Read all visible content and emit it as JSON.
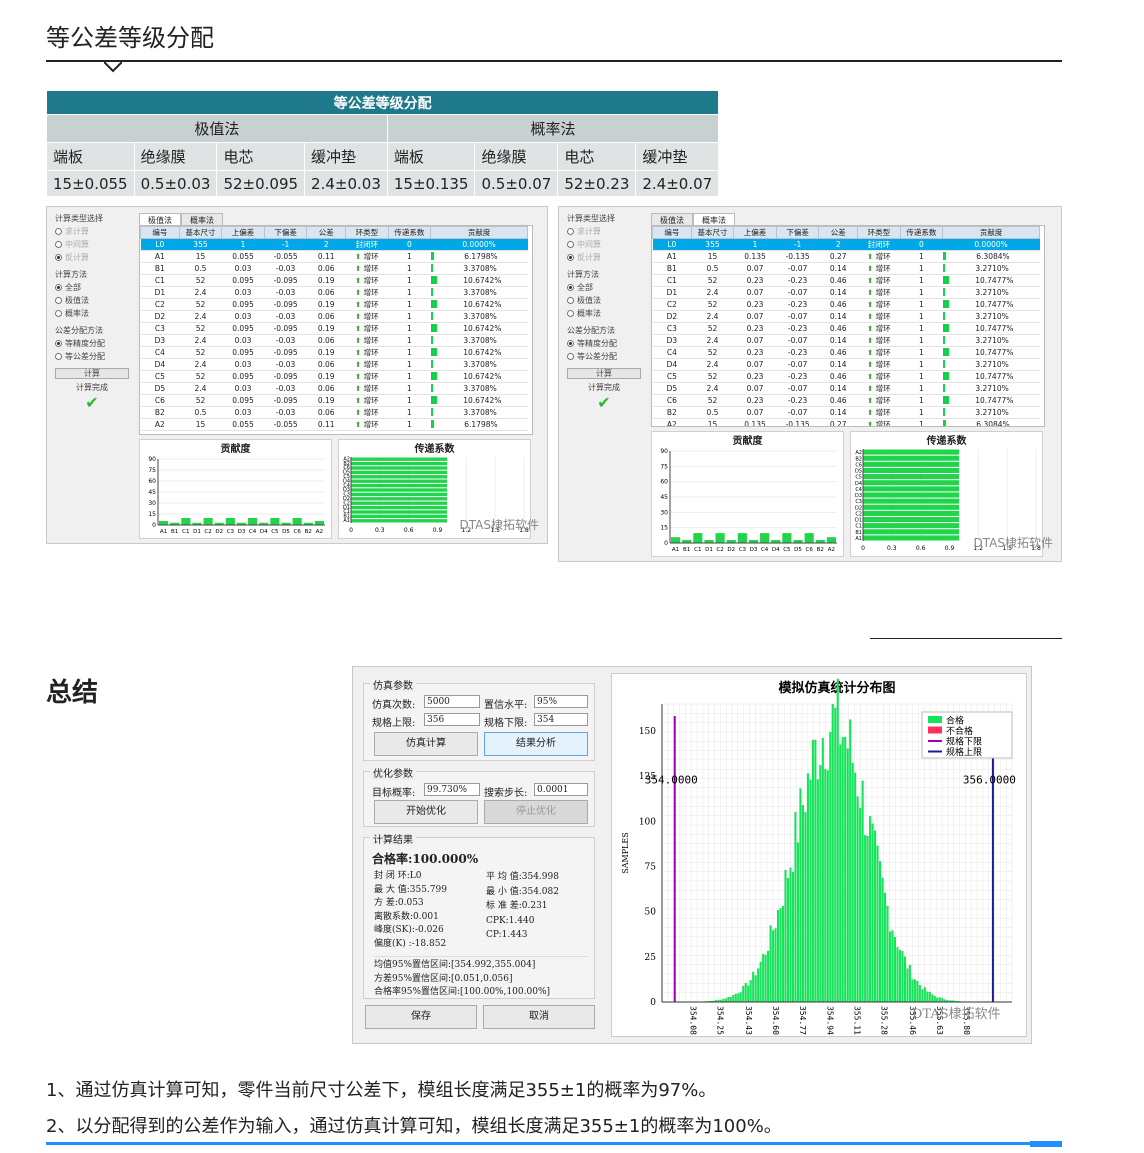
{
  "section1_title": "等公差等级分配",
  "table": {
    "title": "等公差等级分配",
    "group1": "极值法",
    "group2": "概率法",
    "headers1": [
      "端板",
      "绝缘膜",
      "电芯",
      "缓冲垫"
    ],
    "values1": [
      "15±0.055",
      "0.5±0.03",
      "52±0.095",
      "2.4±0.03"
    ],
    "headers2": [
      "端板",
      "绝缘膜",
      "电芯",
      "缓冲垫"
    ],
    "values2": [
      "15±0.135",
      "0.5±0.07",
      "52±0.23",
      "2.4±0.07"
    ]
  },
  "sw1": {
    "side": {
      "calc_type_label": "计算类型选择",
      "calc_types": [
        "求计算",
        "中间算",
        "反计算"
      ],
      "method_label": "计算方法",
      "methods": [
        "全部",
        "极值法",
        "概率法"
      ],
      "alloc_label": "公差分配方法",
      "allocs": [
        "等精度分配",
        "等公差分配"
      ],
      "calc_btn": "计算",
      "status": "计算完成"
    },
    "tabs": [
      "极值法",
      "概率法"
    ],
    "columns": [
      "编号",
      "基本尺寸",
      "上偏差",
      "下偏差",
      "公差",
      "环类型",
      "传递系数",
      "贡献度"
    ],
    "rows": [
      [
        "L0",
        "355",
        "1",
        "-1",
        "2",
        "封闭环",
        "0",
        "0.0000%"
      ],
      [
        "A1",
        "15",
        "0.055",
        "-0.055",
        "0.11",
        "增环",
        "1",
        "6.1798%"
      ],
      [
        "B1",
        "0.5",
        "0.03",
        "-0.03",
        "0.06",
        "增环",
        "1",
        "3.3708%"
      ],
      [
        "C1",
        "52",
        "0.095",
        "-0.095",
        "0.19",
        "增环",
        "1",
        "10.6742%"
      ],
      [
        "D1",
        "2.4",
        "0.03",
        "-0.03",
        "0.06",
        "增环",
        "1",
        "3.3708%"
      ],
      [
        "C2",
        "52",
        "0.095",
        "-0.095",
        "0.19",
        "增环",
        "1",
        "10.6742%"
      ],
      [
        "D2",
        "2.4",
        "0.03",
        "-0.03",
        "0.06",
        "增环",
        "1",
        "3.3708%"
      ],
      [
        "C3",
        "52",
        "0.095",
        "-0.095",
        "0.19",
        "增环",
        "1",
        "10.6742%"
      ],
      [
        "D3",
        "2.4",
        "0.03",
        "-0.03",
        "0.06",
        "增环",
        "1",
        "3.3708%"
      ],
      [
        "C4",
        "52",
        "0.095",
        "-0.095",
        "0.19",
        "增环",
        "1",
        "10.6742%"
      ],
      [
        "D4",
        "2.4",
        "0.03",
        "-0.03",
        "0.06",
        "增环",
        "1",
        "3.3708%"
      ],
      [
        "C5",
        "52",
        "0.095",
        "-0.095",
        "0.19",
        "增环",
        "1",
        "10.6742%"
      ],
      [
        "D5",
        "2.4",
        "0.03",
        "-0.03",
        "0.06",
        "增环",
        "1",
        "3.3708%"
      ],
      [
        "C6",
        "52",
        "0.095",
        "-0.095",
        "0.19",
        "增环",
        "1",
        "10.6742%"
      ],
      [
        "B2",
        "0.5",
        "0.03",
        "-0.03",
        "0.06",
        "增环",
        "1",
        "3.3708%"
      ],
      [
        "A2",
        "15",
        "0.055",
        "-0.055",
        "0.11",
        "增环",
        "1",
        "6.1798%"
      ]
    ],
    "chart1_title": "贡献度",
    "chart2_title": "传递系数",
    "watermark": "DTAS棣拓软件"
  },
  "sw2": {
    "side": {
      "calc_type_label": "计算类型选择",
      "calc_types": [
        "求计算",
        "中间算",
        "反计算"
      ],
      "method_label": "计算方法",
      "methods": [
        "全部",
        "极值法",
        "概率法"
      ],
      "alloc_label": "公差分配方法",
      "allocs": [
        "等精度分配",
        "等公差分配"
      ],
      "calc_btn": "计算",
      "status": "计算完成"
    },
    "tabs": [
      "极值法",
      "概率法"
    ],
    "columns": [
      "编号",
      "基本尺寸",
      "上偏差",
      "下偏差",
      "公差",
      "环类型",
      "传递系数",
      "贡献度"
    ],
    "rows": [
      [
        "L0",
        "355",
        "1",
        "-1",
        "2",
        "封闭环",
        "0",
        "0.0000%"
      ],
      [
        "A1",
        "15",
        "0.135",
        "-0.135",
        "0.27",
        "增环",
        "1",
        "6.3084%"
      ],
      [
        "B1",
        "0.5",
        "0.07",
        "-0.07",
        "0.14",
        "增环",
        "1",
        "3.2710%"
      ],
      [
        "C1",
        "52",
        "0.23",
        "-0.23",
        "0.46",
        "增环",
        "1",
        "10.7477%"
      ],
      [
        "D1",
        "2.4",
        "0.07",
        "-0.07",
        "0.14",
        "增环",
        "1",
        "3.2710%"
      ],
      [
        "C2",
        "52",
        "0.23",
        "-0.23",
        "0.46",
        "增环",
        "1",
        "10.7477%"
      ],
      [
        "D2",
        "2.4",
        "0.07",
        "-0.07",
        "0.14",
        "增环",
        "1",
        "3.2710%"
      ],
      [
        "C3",
        "52",
        "0.23",
        "-0.23",
        "0.46",
        "增环",
        "1",
        "10.7477%"
      ],
      [
        "D3",
        "2.4",
        "0.07",
        "-0.07",
        "0.14",
        "增环",
        "1",
        "3.2710%"
      ],
      [
        "C4",
        "52",
        "0.23",
        "-0.23",
        "0.46",
        "增环",
        "1",
        "10.7477%"
      ],
      [
        "D4",
        "2.4",
        "0.07",
        "-0.07",
        "0.14",
        "增环",
        "1",
        "3.2710%"
      ],
      [
        "C5",
        "52",
        "0.23",
        "-0.23",
        "0.46",
        "增环",
        "1",
        "10.7477%"
      ],
      [
        "D5",
        "2.4",
        "0.07",
        "-0.07",
        "0.14",
        "增环",
        "1",
        "3.2710%"
      ],
      [
        "C6",
        "52",
        "0.23",
        "-0.23",
        "0.46",
        "增环",
        "1",
        "10.7477%"
      ],
      [
        "B2",
        "0.5",
        "0.07",
        "-0.07",
        "0.14",
        "增环",
        "1",
        "3.2710%"
      ],
      [
        "A2",
        "15",
        "0.135",
        "-0.135",
        "0.27",
        "增环",
        "1",
        "6.3084%"
      ]
    ],
    "chart1_title": "贡献度",
    "chart2_title": "传递系数",
    "watermark": "DTAS棣拓软件"
  },
  "mini_charts": {
    "contrib_categories": [
      "A1",
      "B1",
      "C1",
      "D1",
      "C2",
      "D2",
      "C3",
      "D3",
      "C4",
      "D4",
      "C5",
      "D5",
      "C6",
      "B2",
      "A2"
    ],
    "contrib_yticks": [
      "0",
      "15",
      "30",
      "45",
      "60",
      "75",
      "90"
    ],
    "trans_categories": [
      "A2",
      "B2",
      "C6",
      "D5",
      "C5",
      "D4",
      "C4",
      "D3",
      "C3",
      "D2",
      "C2",
      "D1",
      "C1",
      "B1",
      "A1"
    ],
    "trans_xticks": [
      "0",
      "0.3",
      "0.6",
      "0.9",
      "1.2",
      "1.5",
      "1.8"
    ]
  },
  "section2_title": "总结",
  "sim": {
    "params_label": "仿真参数",
    "count_label": "仿真次数:",
    "count": "5000",
    "conf_label": "置信水平:",
    "conf": "95%",
    "upper_label": "规格上限:",
    "upper": "356",
    "lower_label": "规格下限:",
    "lower": "354",
    "sim_btn": "仿真计算",
    "analyze_btn": "结果分析",
    "opt_label": "优化参数",
    "target_label": "目标概率:",
    "target": "99.730%",
    "step_label": "搜索步长:",
    "step": "0.0001",
    "start_btn": "开始优化",
    "stop_btn": "停止优化",
    "result_label": "计算结果",
    "pass_rate": "合格率:100.000%",
    "stats_left": [
      "封 闭 环:L0",
      "最 大 值:355.799",
      "方    差:0.053",
      "离散系数:0.001",
      "峰度(SK):-0.026",
      "偏度(K) :-18.852"
    ],
    "stats_right": [
      "平 均 值:354.998",
      "最 小 值:354.082",
      "标 准 差:0.231",
      "CPK:1.440",
      "CP:1.443"
    ],
    "ci": [
      "均值95%置信区间:[354.992,355.004]",
      "方差95%置信区间:[0.051,0.056]",
      "合格率95%置信区间:[100.00%,100.00%]"
    ],
    "save_btn": "保存",
    "cancel_btn": "取消"
  },
  "hist": {
    "title": "模拟仿真统计分布图",
    "ylabel": "SAMPLES",
    "yticks": [
      "0",
      "25",
      "50",
      "75",
      "100",
      "125",
      "150"
    ],
    "xticks": [
      "354.08",
      "354.25",
      "354.43",
      "354.60",
      "354.77",
      "354.94",
      "355.11",
      "355.28",
      "355.46",
      "355.63",
      "355.80"
    ],
    "lsl_label": "354.0000",
    "usl_label": "356.0000",
    "legend": [
      "合格",
      "不合格",
      "规格下限",
      "规格上限"
    ],
    "legend_colors": [
      "#17e35a",
      "#ff3060",
      "#9b00b5",
      "#1a1aa0"
    ],
    "watermark": "DTAS棣拓软件"
  },
  "chart_data": {
    "type": "bar",
    "title": "模拟仿真统计分布图",
    "ylabel": "SAMPLES",
    "ylim": [
      0,
      160
    ],
    "x_range": [
      354.0,
      356.0
    ],
    "mean": 354.998,
    "std": 0.231,
    "peak": 155,
    "lsl": 354.0,
    "usl": 356.0
  },
  "footer": {
    "line1": "1、通过仿真计算可知，零件当前尺寸公差下，模组长度满足355±1的概率为97%。",
    "line2": "2、以分配得到的公差作为输入，通过仿真计算可知，模组长度满足355±1的概率为100%。"
  }
}
